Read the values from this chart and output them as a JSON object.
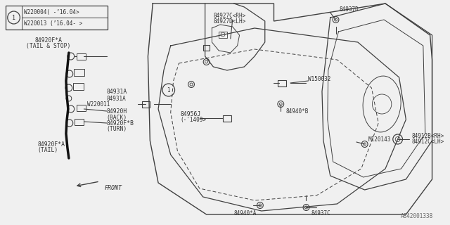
{
  "bg_color": "#f0f0f0",
  "line_color": "#404040",
  "text_color": "#303030",
  "diagram_ref": "A842001338",
  "legend_lines": [
    "W220004( -’16.04>",
    "W220013 (’16.04- >"
  ],
  "label_fs": 5.8,
  "mono_font": "DejaVu Sans Mono"
}
